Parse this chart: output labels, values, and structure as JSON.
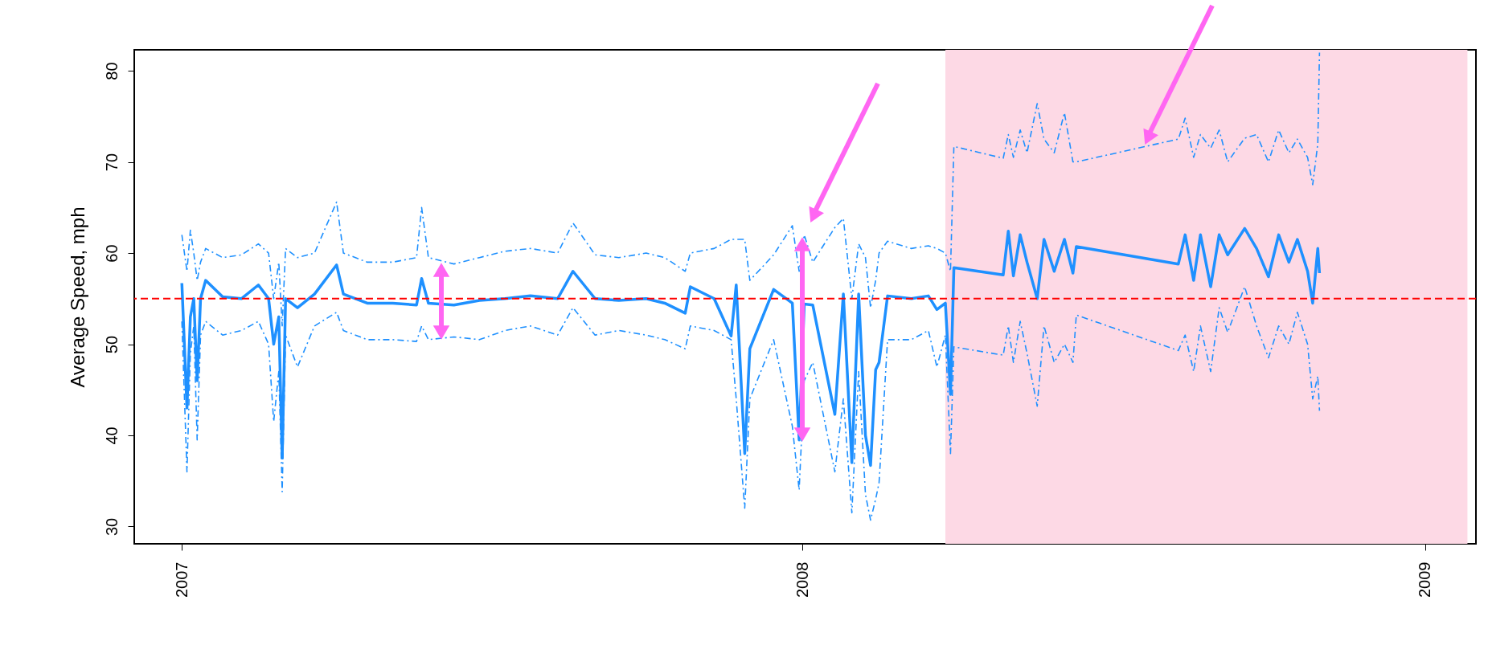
{
  "chart_data": {
    "type": "line",
    "ylabel": "Average Speed, mph",
    "x": [
      "2007-01-01",
      "2007-01-04",
      "2007-01-06",
      "2007-01-08",
      "2007-01-10",
      "2007-01-12",
      "2007-01-15",
      "2007-01-25",
      "2007-02-05",
      "2007-02-15",
      "2007-02-21",
      "2007-02-24",
      "2007-02-27",
      "2007-03-01",
      "2007-03-03",
      "2007-03-10",
      "2007-03-20",
      "2007-04-02",
      "2007-04-06",
      "2007-04-20",
      "2007-05-05",
      "2007-05-19",
      "2007-05-22",
      "2007-05-26",
      "2007-06-10",
      "2007-06-25",
      "2007-07-10",
      "2007-07-25",
      "2007-08-10",
      "2007-08-19",
      "2007-09-01",
      "2007-09-15",
      "2007-10-01",
      "2007-10-12",
      "2007-10-24",
      "2007-10-27",
      "2007-11-10",
      "2007-11-20",
      "2007-11-23",
      "2007-11-28",
      "2007-12-01",
      "2007-12-15",
      "2007-12-26",
      "2007-12-30",
      "2008-01-02",
      "2008-01-07",
      "2008-01-20",
      "2008-01-25",
      "2008-01-30",
      "2008-02-03",
      "2008-02-07",
      "2008-02-10",
      "2008-02-13",
      "2008-02-15",
      "2008-02-20",
      "2008-03-05",
      "2008-03-15",
      "2008-03-20",
      "2008-03-25",
      "2008-03-28",
      "2008-03-30",
      "2008-04-28",
      "2008-05-01",
      "2008-05-04",
      "2008-05-08",
      "2008-05-12",
      "2008-05-18",
      "2008-05-22",
      "2008-05-28",
      "2008-06-03",
      "2008-06-08",
      "2008-06-10",
      "2008-08-09",
      "2008-08-13",
      "2008-08-18",
      "2008-08-22",
      "2008-08-28",
      "2008-09-02",
      "2008-09-07",
      "2008-09-17",
      "2008-09-24",
      "2008-10-01",
      "2008-10-07",
      "2008-10-13",
      "2008-10-18",
      "2008-10-24",
      "2008-10-27",
      "2008-10-30",
      "2008-10-31"
    ],
    "series": [
      {
        "color": "#1e90ff",
        "line_style": "solid",
        "values": [
          56.7,
          43,
          53,
          55,
          46,
          55,
          57,
          55.2,
          55,
          56.5,
          55,
          50,
          53,
          37.5,
          55,
          54,
          55.5,
          58.7,
          55.5,
          54.5,
          54.5,
          54.3,
          57.2,
          54.5,
          54.3,
          54.8,
          55,
          55.3,
          55,
          58,
          55,
          54.8,
          55,
          54.5,
          53.4,
          56.3,
          55,
          50.9,
          56.5,
          38,
          49.5,
          56,
          54.5,
          39.5,
          54.4,
          54.3,
          42.3,
          55.5,
          37,
          55.5,
          40,
          36.7,
          47.2,
          48,
          55.3,
          55,
          55.3,
          53.8,
          54.5,
          44.5,
          58.4,
          57.6,
          62.4,
          57.5,
          62,
          59,
          55,
          61.5,
          58,
          61.5,
          57.8,
          60.7,
          58.8,
          62,
          57,
          62,
          56.3,
          62,
          59.8,
          62.7,
          60.5,
          57.4,
          62,
          59,
          61.5,
          58,
          54.5,
          60.5,
          57.8
        ]
      },
      {
        "color": "#1e90ff",
        "line_style": "dashed",
        "values": [
          62,
          58,
          62.5,
          60,
          57,
          59,
          60.5,
          59.5,
          59.8,
          61,
          60,
          55,
          59,
          52,
          60.5,
          59.5,
          60,
          65.6,
          60,
          59,
          59,
          59.5,
          65,
          59.5,
          58.8,
          59.5,
          60.2,
          60.5,
          60,
          63.3,
          59.8,
          59.5,
          60,
          59.5,
          58,
          60,
          60.5,
          61.5,
          61.5,
          61.5,
          57,
          59.8,
          63,
          58,
          62,
          59,
          62.8,
          63.8,
          55,
          61,
          59.5,
          54,
          57,
          60,
          61.3,
          60.5,
          60.8,
          60.5,
          60,
          58,
          71.7,
          70.4,
          73,
          70.5,
          73.5,
          71,
          76.4,
          72.5,
          71,
          75.4,
          70,
          70,
          72.5,
          74.8,
          70.5,
          73,
          71.5,
          73.5,
          70,
          72.6,
          73,
          70,
          73.5,
          71,
          72.5,
          70.5,
          67.5,
          72,
          82
        ]
      },
      {
        "color": "#1e90ff",
        "line_style": "dashed",
        "values": [
          52.5,
          36,
          49,
          52,
          39.5,
          51,
          52.5,
          51,
          51.5,
          52.5,
          50,
          41.5,
          47,
          33.8,
          51,
          47.5,
          52,
          53.5,
          51.5,
          50.5,
          50.5,
          50.3,
          52,
          50.5,
          50.8,
          50.5,
          51.5,
          52,
          51,
          54,
          51,
          51.5,
          51,
          50.5,
          49.5,
          52,
          51.5,
          50.5,
          44,
          32,
          44,
          50.5,
          41,
          34,
          46,
          48,
          36,
          44,
          31.5,
          47,
          33.5,
          30.7,
          33,
          34.8,
          50.5,
          50.5,
          51.5,
          47.5,
          51,
          38,
          49.7,
          48.8,
          52,
          48,
          52.5,
          49,
          43.2,
          52,
          48,
          50,
          48,
          53.2,
          49.3,
          51,
          47,
          52,
          47,
          54,
          51.3,
          56.3,
          52,
          48.5,
          52,
          50,
          53.5,
          50,
          44,
          46.5,
          42.7
        ]
      }
    ],
    "xlim": [
      "2006-12-04",
      "2009-01-31"
    ],
    "xticks": [
      {
        "value": "2007-01-01",
        "label": "2007"
      },
      {
        "value": "2008-01-01",
        "label": "2008"
      },
      {
        "value": "2009-01-01",
        "label": "2009"
      }
    ],
    "ylim": [
      28.1,
      82.3
    ],
    "yticks": [
      30,
      40,
      50,
      60,
      70,
      80
    ],
    "ref_lines": [
      {
        "axis": "y",
        "value": 55,
        "color": "#ff0000",
        "line_style": "dashed"
      }
    ],
    "bands": [
      {
        "axis": "x",
        "from": "2008-03-25",
        "to": "2009-01-26",
        "color": "#fdd9e5"
      }
    ],
    "grid": false
  }
}
